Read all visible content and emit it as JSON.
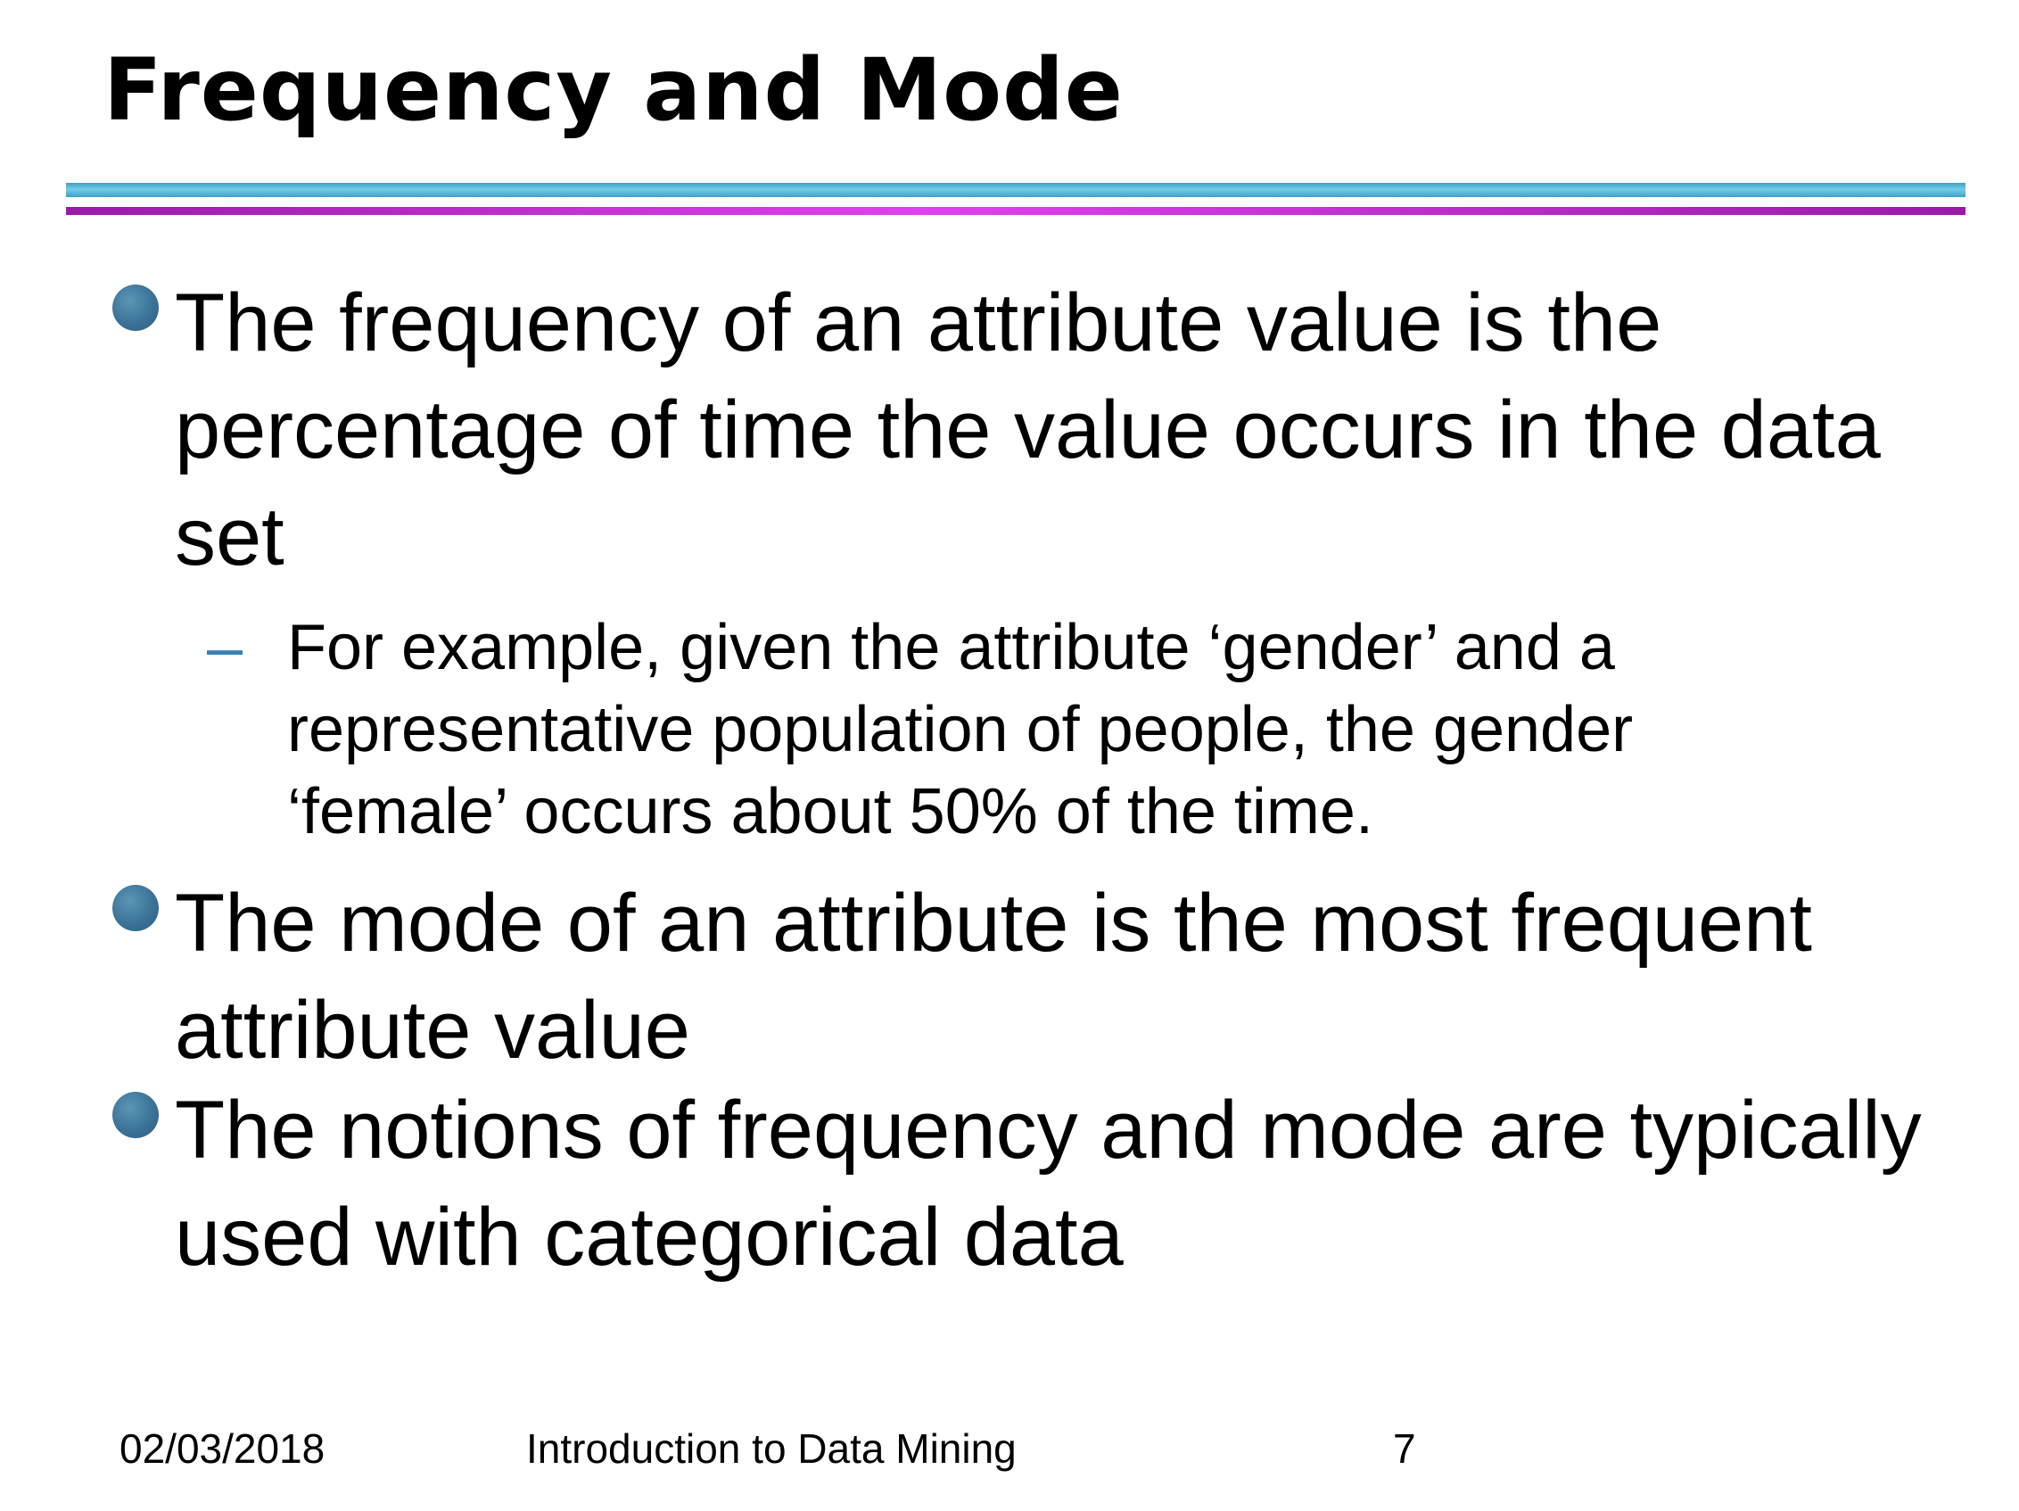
{
  "slide": {
    "title": "Frequency and Mode",
    "bullets": [
      {
        "text": "The frequency of an attribute value is the percentage of time the value occurs in the data set"
      },
      {
        "text": "The mode of an attribute is the most frequent attribute value"
      },
      {
        "text": "The notions of frequency and mode are typically used with categorical data"
      }
    ],
    "sub_bullet": {
      "marker": "–",
      "text": "For example, given the attribute ‘gender’ and a representative population of people, the gender ‘female’ occurs about 50% of the time."
    }
  },
  "footer": {
    "date": "02/03/2018",
    "course": "Introduction to Data Mining",
    "page": "7"
  },
  "colors": {
    "bullet": "#3a7396",
    "dash": "#3a7fb0",
    "rule_top": "#5bbbd9",
    "rule_bottom": "#c42fd6"
  }
}
